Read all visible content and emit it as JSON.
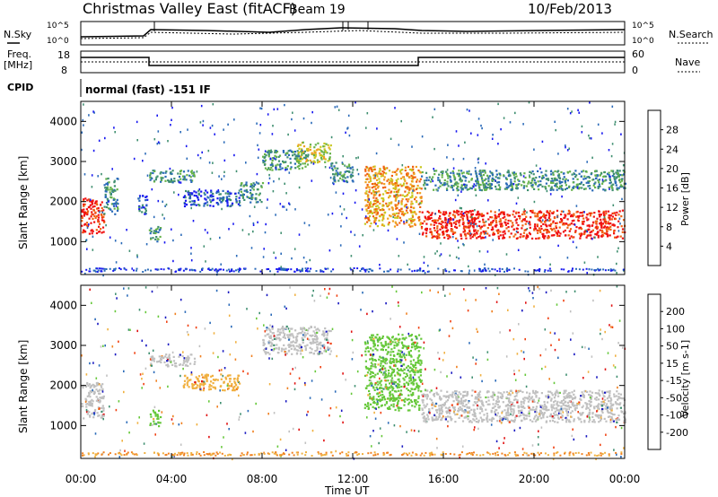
{
  "header": {
    "title": "Christmas Valley East (fitACF)",
    "beam": "Beam 19",
    "date": "10/Feb/2013"
  },
  "noise_panel": {
    "left_label": "N.Sky",
    "right_label": "N.Search",
    "ticks_left": [
      "10^5",
      "10^0"
    ],
    "ticks_right": [
      "10^5",
      "10^0"
    ]
  },
  "freq_panel": {
    "label_line1": "Freq.",
    "label_line2": "[MHz]",
    "ticks_left": [
      "18",
      "8"
    ],
    "right_label": "Nave",
    "ticks_right": [
      "60",
      "0"
    ]
  },
  "cpid_panel": {
    "label": "CPID",
    "text": "normal (fast) -151 IF"
  },
  "chart_data": [
    {
      "type": "heatmap",
      "panel": "power",
      "ylabel": "Slant Range [km]",
      "xlabel": "",
      "ylim": [
        180,
        4500
      ],
      "y_ticks": [
        "1000",
        "2000",
        "3000",
        "4000"
      ],
      "x_ticks": [
        "00:00",
        "04:00",
        "08:00",
        "12:00",
        "16:00",
        "20:00",
        "00:00"
      ],
      "colorbar": {
        "label": "Power [dB]",
        "ticks": [
          "4",
          "8",
          "12",
          "16",
          "20",
          "24",
          "28"
        ],
        "colors": [
          "#1818f0",
          "#2a6ab8",
          "#3f8f70",
          "#66b24a",
          "#c8c820",
          "#f0a020",
          "#f06010",
          "#f01010"
        ]
      },
      "echo_regions": [
        {
          "t": [
            0.0,
            1.0
          ],
          "r": [
            1200,
            2100
          ],
          "level": 7
        },
        {
          "t": [
            1.0,
            1.6
          ],
          "r": [
            1700,
            2600
          ],
          "level": 2
        },
        {
          "t": [
            2.5,
            2.9
          ],
          "r": [
            1700,
            2200
          ],
          "level": 1
        },
        {
          "t": [
            3.0,
            3.5
          ],
          "r": [
            1000,
            1400
          ],
          "level": 2
        },
        {
          "t": [
            3.0,
            5.0
          ],
          "r": [
            2500,
            2800
          ],
          "level": 2
        },
        {
          "t": [
            4.5,
            7.0
          ],
          "r": [
            1900,
            2300
          ],
          "level": 1
        },
        {
          "t": [
            7.0,
            8.0
          ],
          "r": [
            2000,
            2500
          ],
          "level": 2
        },
        {
          "t": [
            8.0,
            10.0
          ],
          "r": [
            2800,
            3300
          ],
          "level": 2
        },
        {
          "t": [
            9.5,
            11.0
          ],
          "r": [
            3000,
            3500
          ],
          "level": 4
        },
        {
          "t": [
            11.0,
            12.0
          ],
          "r": [
            2500,
            3000
          ],
          "level": 2
        },
        {
          "t": [
            12.5,
            15.0
          ],
          "r": [
            1400,
            2900
          ],
          "level": 5
        },
        {
          "t": [
            15.0,
            24.0
          ],
          "r": [
            1100,
            1800
          ],
          "level": 7
        },
        {
          "t": [
            15.0,
            24.0
          ],
          "r": [
            2300,
            2800
          ],
          "level": 2
        }
      ]
    },
    {
      "type": "heatmap",
      "panel": "velocity",
      "ylabel": "Slant Range [km]",
      "xlabel": "Time UT",
      "ylim": [
        180,
        4500
      ],
      "y_ticks": [
        "1000",
        "2000",
        "3000",
        "4000"
      ],
      "x_ticks": [
        "00:00",
        "04:00",
        "08:00",
        "12:00",
        "16:00",
        "20:00",
        "00:00"
      ],
      "colorbar": {
        "label": "Velocity [m s-1]",
        "ticks": [
          "200",
          "100",
          "50",
          "15",
          "-15",
          "-50",
          "-100",
          "-200"
        ],
        "colors": [
          "#1818c0",
          "#2a6ab8",
          "#3f8f70",
          "#66c83a",
          "#c0c0c0",
          "#f0b040",
          "#f08020",
          "#f04010",
          "#e01010"
        ]
      },
      "echo_regions": [
        {
          "t": [
            0.0,
            1.0
          ],
          "r": [
            1200,
            2100
          ],
          "v": "ground"
        },
        {
          "t": [
            3.0,
            3.5
          ],
          "r": [
            1000,
            1400
          ],
          "v": "50"
        },
        {
          "t": [
            3.0,
            5.0
          ],
          "r": [
            2500,
            2800
          ],
          "v": "ground"
        },
        {
          "t": [
            4.5,
            7.0
          ],
          "r": [
            1900,
            2300
          ],
          "v": "-50"
        },
        {
          "t": [
            8.0,
            11.0
          ],
          "r": [
            2800,
            3500
          ],
          "v": "ground"
        },
        {
          "t": [
            12.5,
            15.0
          ],
          "r": [
            1400,
            3300
          ],
          "v": "50"
        },
        {
          "t": [
            15.0,
            24.0
          ],
          "r": [
            1100,
            1900
          ],
          "v": "ground"
        }
      ]
    }
  ]
}
